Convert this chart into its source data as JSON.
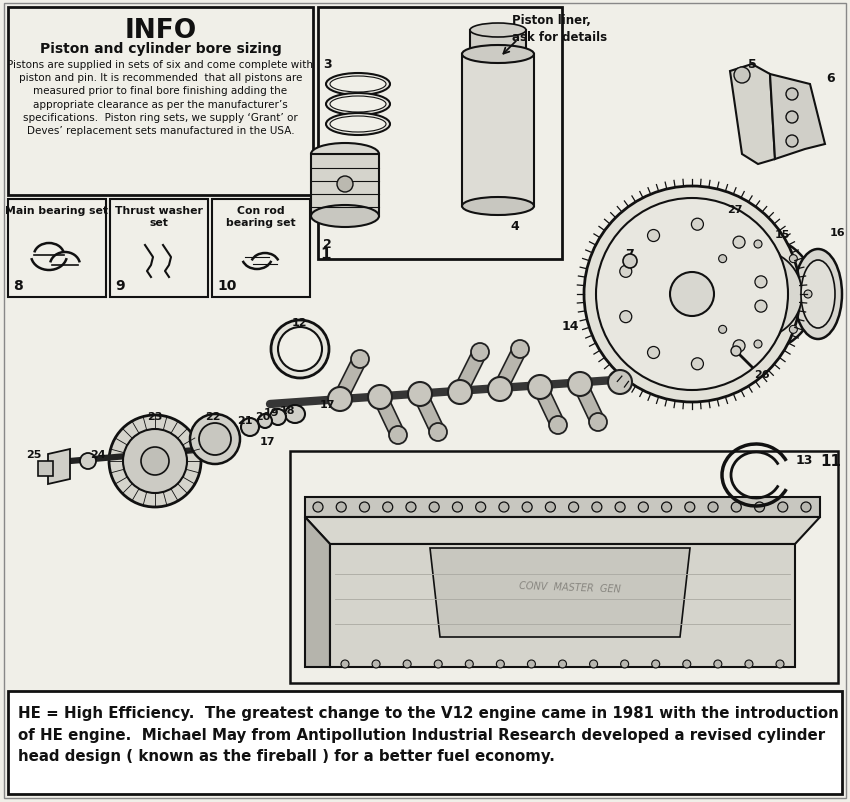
{
  "bg_color": "#f0efe8",
  "border_color": "#1a1a1a",
  "info_box": {
    "title": "INFO",
    "subtitle": "Piston and cylinder bore sizing",
    "body": "Pistons are supplied in sets of six and come complete with\npiston and pin. It is recommended  that all pistons are\nmeasured prior to final bore finishing adding the\nappropriate clearance as per the manufacturer’s\nspecifications.  Piston ring sets, we supply ‘Grant’ or\nDeves’ replacement sets manufactured in the USA."
  },
  "bearing_boxes": [
    {
      "label": "Main bearing set",
      "num": "8"
    },
    {
      "label": "Thrust washer\nset",
      "num": "9"
    },
    {
      "label": "Con rod\nbearing set",
      "num": "10"
    }
  ],
  "piston_box_title": "Piston liner,\nask for details",
  "footer_text": "HE = High Efficiency.  The greatest change to the V12 engine came in 1981 with the introduction\nof HE engine.  Michael May from Antipollution Industrial Research developed a revised cylinder\nhead design ( known as the fireball ) for a better fuel economy.",
  "footer_bg": "#ffffff",
  "line_color": "#111111"
}
